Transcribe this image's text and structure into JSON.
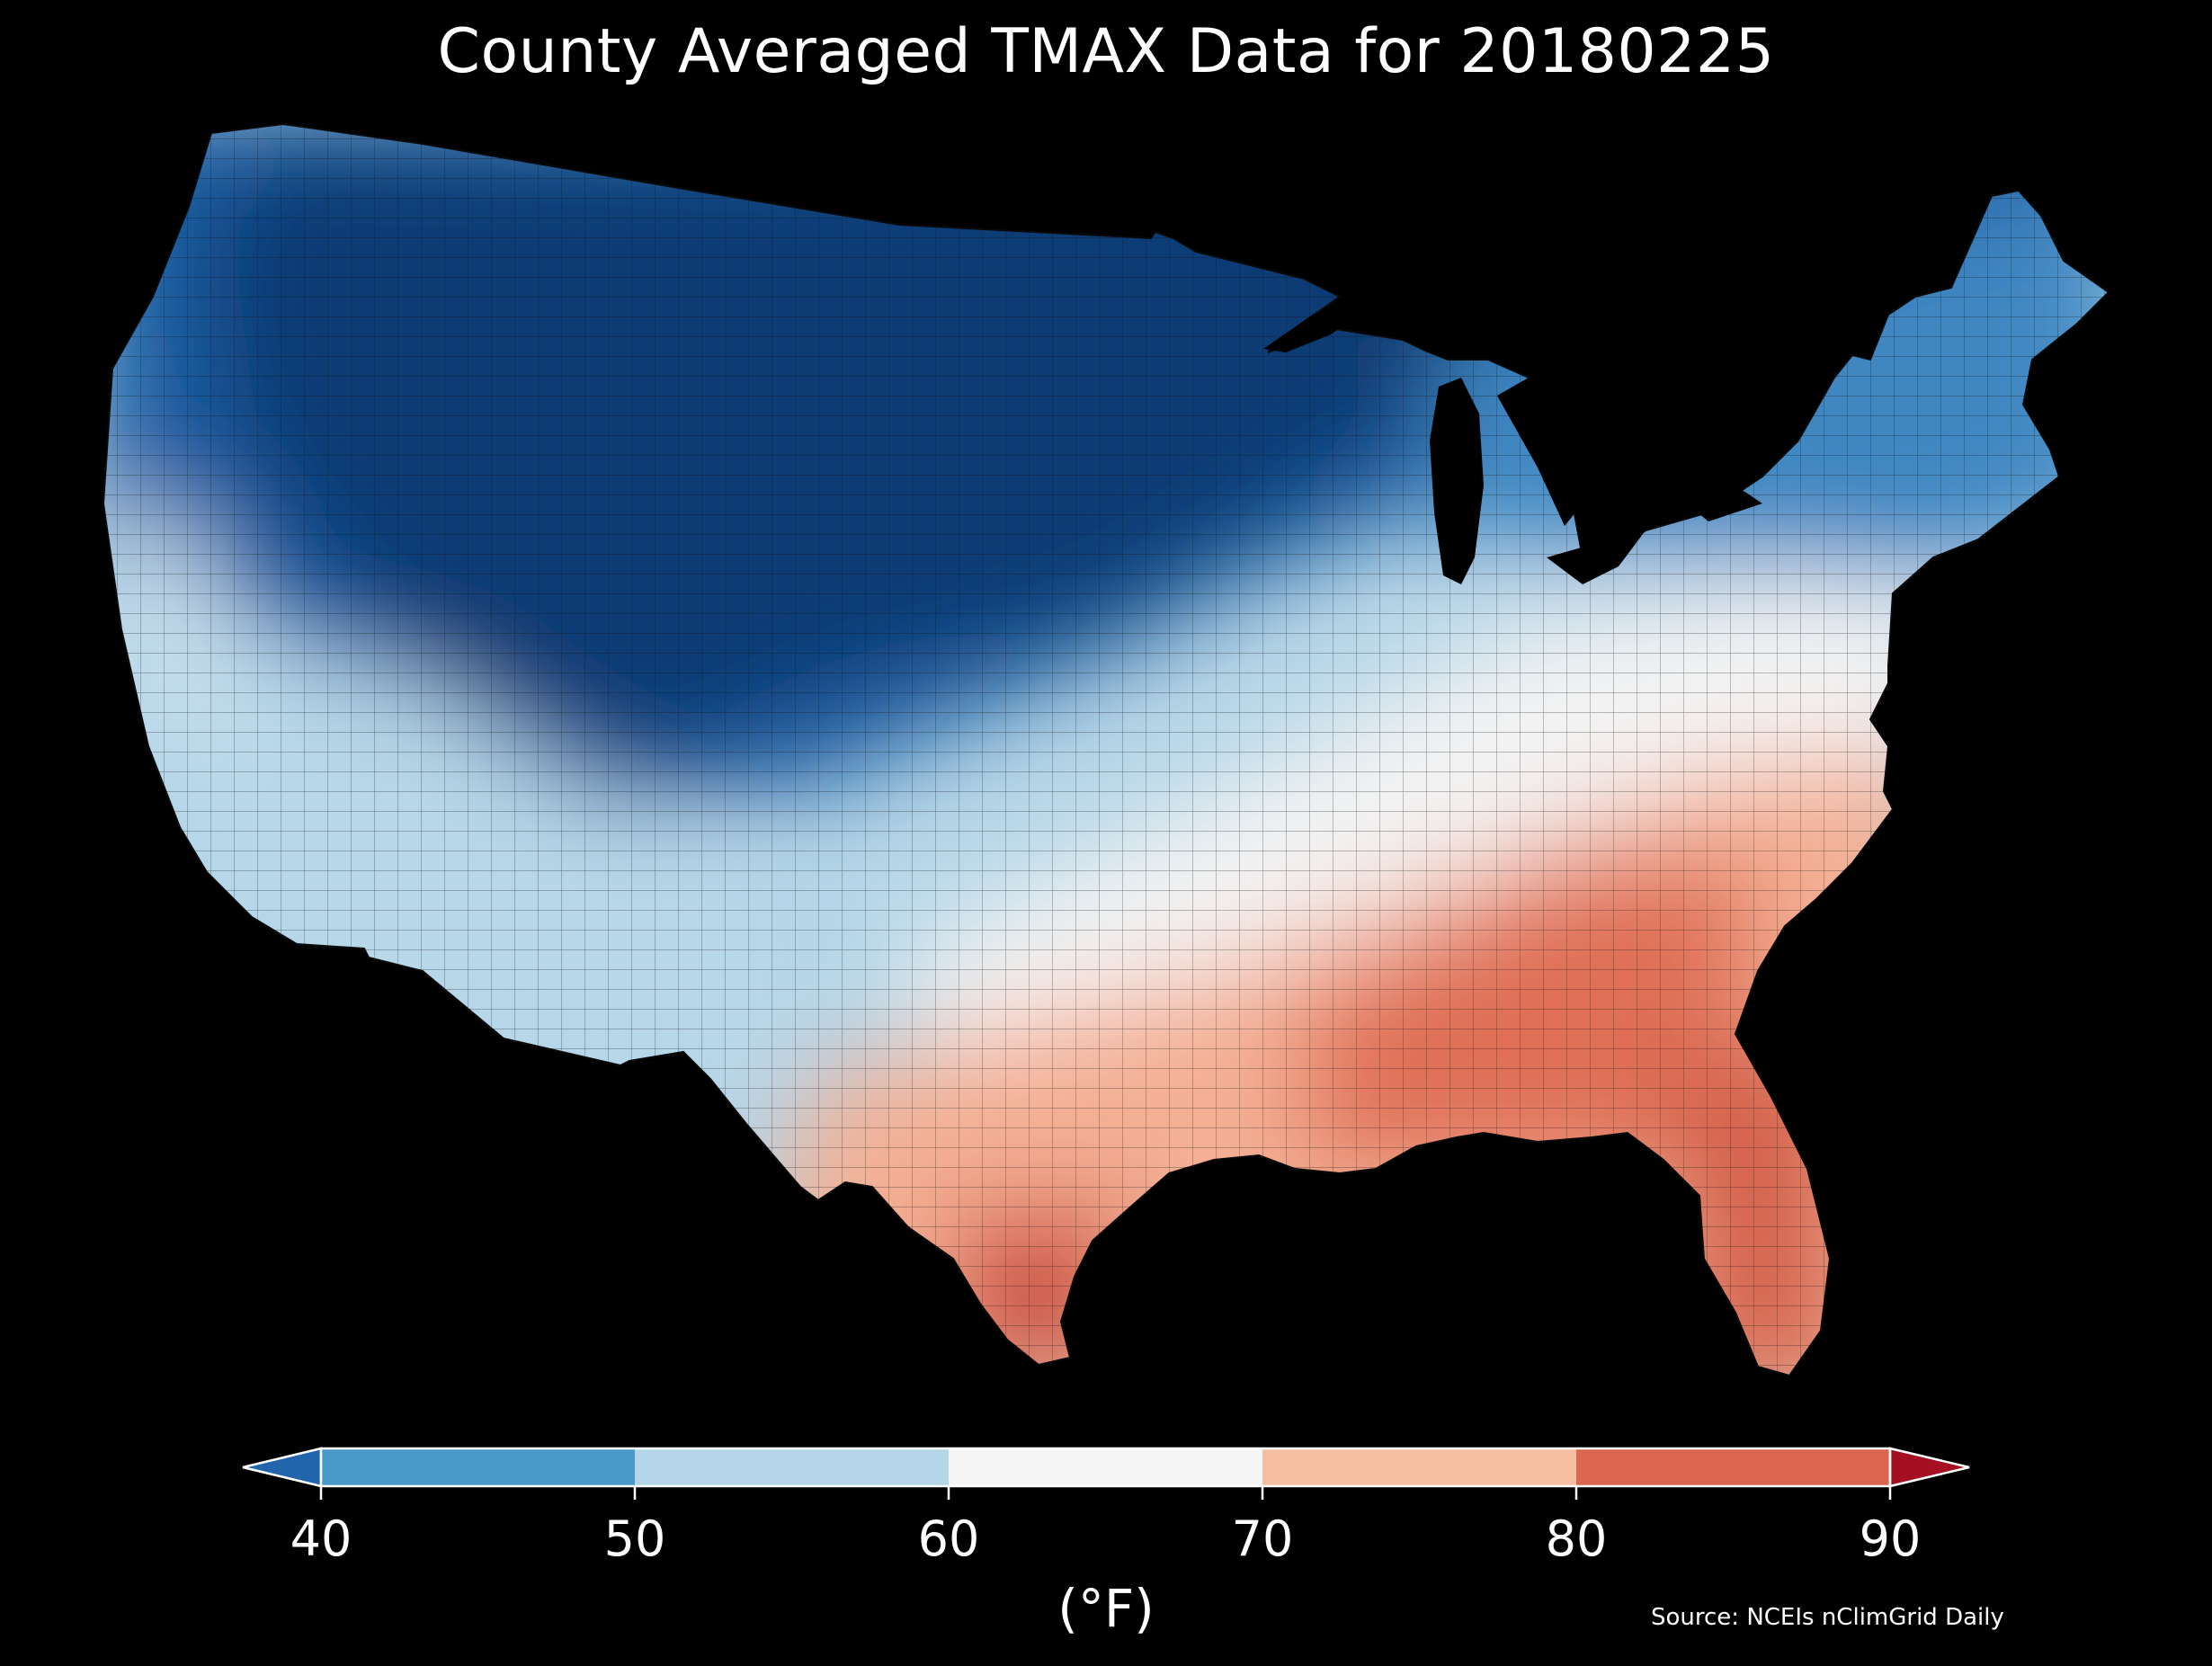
{
  "title": "County Averaged TMAX Data for 20180225",
  "colorbar": {
    "ticks": [
      "40",
      "50",
      "60",
      "70",
      "80",
      "90"
    ],
    "unit_label": "(°F)",
    "bins": [
      {
        "range": "<40",
        "color": "#2166ac"
      },
      {
        "range": "40-50",
        "color": "#4a9ac8"
      },
      {
        "range": "50-60",
        "color": "#b4d6e8"
      },
      {
        "range": "60-70",
        "color": "#f5f5f5"
      },
      {
        "range": "70-80",
        "color": "#f7bfa2"
      },
      {
        "range": "80-90",
        "color": "#dd6650"
      },
      {
        "range": ">90",
        "color": "#a50f22"
      }
    ]
  },
  "source": "Source: NCEIs nClimGrid Daily",
  "map": {
    "region": "Contiguous United States",
    "level": "county",
    "variable": "TMAX",
    "date": "20180225",
    "regional_pattern": [
      {
        "area": "Northern Plains / Rockies / Upper Midwest",
        "tmax_range": "<40",
        "color": "#0b3a73"
      },
      {
        "area": "Pacific Northwest / Great Basin",
        "tmax_range": "40-50",
        "color": "#3c7fbd"
      },
      {
        "area": "California / Southwest / Central Plains",
        "tmax_range": "50-60",
        "color": "#b4d6e8"
      },
      {
        "area": "Ohio Valley / Mid-Atlantic",
        "tmax_range": "60-70",
        "color": "#f2f2f2"
      },
      {
        "area": "Tennessee Valley / Carolinas / Central Texas",
        "tmax_range": "70-80",
        "color": "#f4b094"
      },
      {
        "area": "Deep South / Florida / South Texas",
        "tmax_range": "80-90",
        "color": "#d6604d"
      }
    ]
  }
}
